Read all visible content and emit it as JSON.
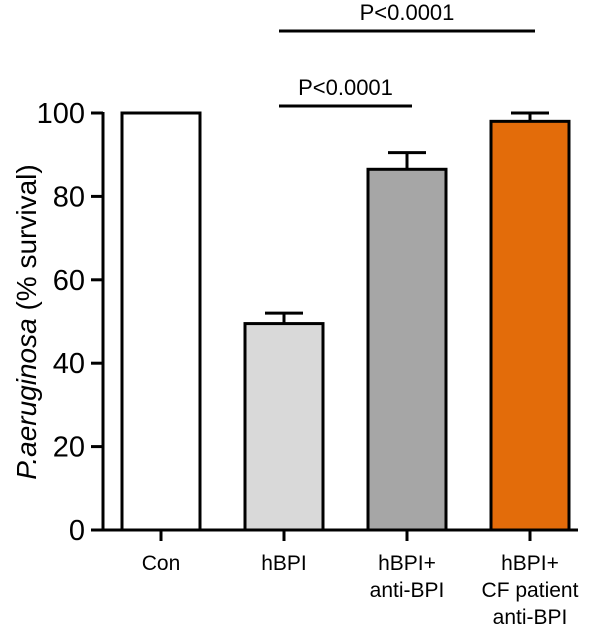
{
  "chart_data": {
    "type": "bar",
    "categories": [
      [
        "Con"
      ],
      [
        "hBPI"
      ],
      [
        "hBPI+",
        "anti-BPI"
      ],
      [
        "hBPI+",
        "CF patient",
        "anti-BPI"
      ]
    ],
    "values": [
      100,
      49.5,
      86.5,
      98
    ],
    "errors": [
      0,
      2.5,
      4,
      2
    ],
    "colors": [
      "#ffffff",
      "#d9d9d9",
      "#a6a6a6",
      "#e36c0a"
    ],
    "ylabel_italic": "P.aeruginosa",
    "ylabel_rest": " (% survival)",
    "ylim": [
      0,
      100
    ],
    "yticks": [
      0,
      20,
      40,
      60,
      80,
      100
    ],
    "significance": [
      {
        "from": 1,
        "to": 2,
        "label": "P<0.0001"
      },
      {
        "from": 1,
        "to": 3,
        "label": "P<0.0001"
      }
    ]
  }
}
